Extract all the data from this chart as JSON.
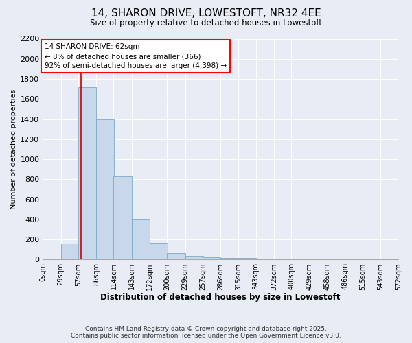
{
  "title_line1": "14, SHARON DRIVE, LOWESTOFT, NR32 4EE",
  "title_line2": "Size of property relative to detached houses in Lowestoft",
  "xlabel": "Distribution of detached houses by size in Lowestoft",
  "ylabel": "Number of detached properties",
  "bar_color": "#c8d8ea",
  "bar_edge_color": "#7aaac8",
  "annotation_line1": "14 SHARON DRIVE: 62sqm",
  "annotation_line2": "← 8% of detached houses are smaller (366)",
  "annotation_line3": "92% of semi-detached houses are larger (4,398) →",
  "property_size_sqm": 62,
  "categories": [
    "0sqm",
    "29sqm",
    "57sqm",
    "86sqm",
    "114sqm",
    "143sqm",
    "172sqm",
    "200sqm",
    "229sqm",
    "257sqm",
    "286sqm",
    "315sqm",
    "343sqm",
    "372sqm",
    "400sqm",
    "429sqm",
    "458sqm",
    "486sqm",
    "515sqm",
    "543sqm",
    "572sqm"
  ],
  "bin_edges": [
    0,
    29,
    57,
    86,
    114,
    143,
    172,
    200,
    229,
    257,
    286,
    315,
    343,
    372,
    400,
    429,
    458,
    486,
    515,
    543,
    572
  ],
  "values": [
    10,
    160,
    1720,
    1400,
    830,
    405,
    165,
    65,
    35,
    25,
    18,
    15,
    8,
    4,
    3,
    2,
    2,
    1,
    1,
    0,
    0
  ],
  "ylim": [
    0,
    2200
  ],
  "yticks": [
    0,
    200,
    400,
    600,
    800,
    1000,
    1200,
    1400,
    1600,
    1800,
    2000,
    2200
  ],
  "background_color": "#e8edf5",
  "plot_background": "#e8edf5",
  "vline_x": 62,
  "vline_color": "#cc0000",
  "footer_line1": "Contains HM Land Registry data © Crown copyright and database right 2025.",
  "footer_line2": "Contains public sector information licensed under the Open Government Licence v3.0."
}
